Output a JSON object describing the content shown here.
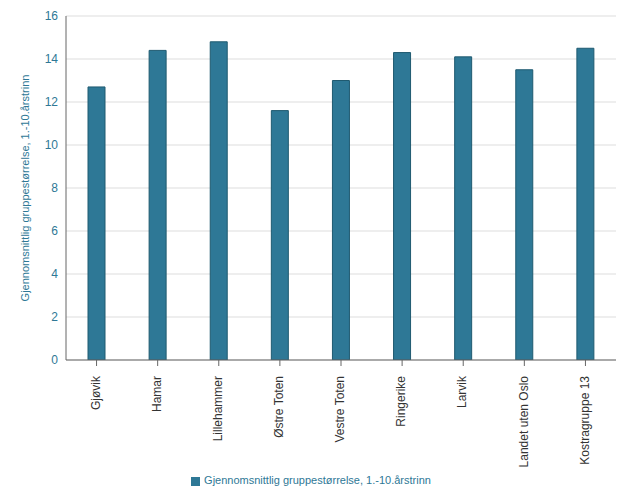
{
  "chart_data": {
    "type": "bar",
    "y_label": "Gjennomsnittlig gruppestørrelse, 1.-10.årstrinn",
    "categories": [
      "Gjøvik",
      "Hamar",
      "Lillehammer",
      "Østre Toten",
      "Vestre Toten",
      "Ringerike",
      "Larvik",
      "Landet uten Oslo",
      "Kostragruppe 13"
    ],
    "series": [
      {
        "name": "Gjennomsnittlig gruppestørrelse, 1.-10.årstrinn",
        "color": "#2e7896",
        "values": [
          12.7,
          14.4,
          14.8,
          11.6,
          13.0,
          14.3,
          14.1,
          13.5,
          14.5
        ]
      }
    ],
    "ylim": [
      0,
      16
    ],
    "yticks": [
      0,
      2,
      4,
      6,
      8,
      10,
      12,
      14,
      16
    ],
    "grid": true,
    "legend": "bottom"
  }
}
